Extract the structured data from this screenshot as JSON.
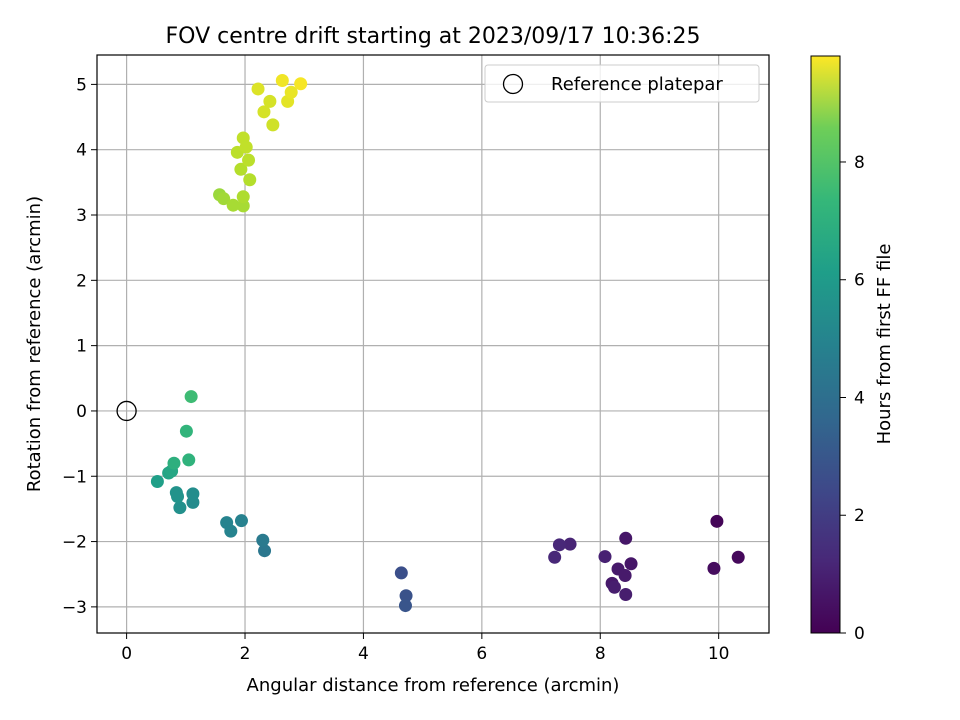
{
  "chart_data": {
    "type": "scatter",
    "title": "FOV centre drift starting at 2023/09/17 10:36:25",
    "xlabel": "Angular distance from reference (arcmin)",
    "ylabel": "Rotation from reference (arcmin)",
    "xlim": [
      -0.5,
      10.85
    ],
    "ylim": [
      -3.4,
      5.45
    ],
    "xticks": [
      0,
      2,
      4,
      6,
      8,
      10
    ],
    "yticks": [
      -3,
      -2,
      -1,
      0,
      1,
      2,
      3,
      4,
      5
    ],
    "grid": true,
    "legend": {
      "position": "top-right",
      "entries": [
        "Reference platepar"
      ]
    },
    "reference_point": {
      "x": 0,
      "y": 0
    },
    "colorbar": {
      "label": "Hours from first FF file",
      "range": [
        0,
        9.8
      ],
      "ticks": [
        0,
        2,
        4,
        6,
        8
      ],
      "colormap": "viridis"
    },
    "points": [
      {
        "x": 9.97,
        "y": -1.69,
        "t": 0.1
      },
      {
        "x": 10.33,
        "y": -2.24,
        "t": 0.2
      },
      {
        "x": 9.92,
        "y": -2.41,
        "t": 0.3
      },
      {
        "x": 8.43,
        "y": -1.95,
        "t": 0.6
      },
      {
        "x": 8.52,
        "y": -2.34,
        "t": 0.6
      },
      {
        "x": 8.3,
        "y": -2.42,
        "t": 0.7
      },
      {
        "x": 8.42,
        "y": -2.52,
        "t": 0.7
      },
      {
        "x": 8.2,
        "y": -2.64,
        "t": 0.7
      },
      {
        "x": 8.24,
        "y": -2.7,
        "t": 0.8
      },
      {
        "x": 8.43,
        "y": -2.81,
        "t": 0.8
      },
      {
        "x": 8.08,
        "y": -2.23,
        "t": 0.9
      },
      {
        "x": 7.49,
        "y": -2.04,
        "t": 1.0
      },
      {
        "x": 7.31,
        "y": -2.05,
        "t": 1.1
      },
      {
        "x": 7.23,
        "y": -2.24,
        "t": 1.1
      },
      {
        "x": 4.64,
        "y": -2.48,
        "t": 2.4
      },
      {
        "x": 4.72,
        "y": -2.83,
        "t": 2.5
      },
      {
        "x": 4.71,
        "y": -2.98,
        "t": 2.6
      },
      {
        "x": 2.33,
        "y": -2.14,
        "t": 3.9
      },
      {
        "x": 2.3,
        "y": -1.98,
        "t": 4.0
      },
      {
        "x": 1.94,
        "y": -1.68,
        "t": 4.3
      },
      {
        "x": 1.69,
        "y": -1.71,
        "t": 4.4
      },
      {
        "x": 1.76,
        "y": -1.84,
        "t": 4.4
      },
      {
        "x": 1.12,
        "y": -1.4,
        "t": 4.7
      },
      {
        "x": 1.12,
        "y": -1.27,
        "t": 4.8
      },
      {
        "x": 0.9,
        "y": -1.48,
        "t": 4.9
      },
      {
        "x": 0.84,
        "y": -1.25,
        "t": 5.0
      },
      {
        "x": 0.86,
        "y": -1.31,
        "t": 5.0
      },
      {
        "x": 0.52,
        "y": -1.08,
        "t": 5.5
      },
      {
        "x": 0.71,
        "y": -0.95,
        "t": 5.7
      },
      {
        "x": 0.76,
        "y": -0.92,
        "t": 5.8
      },
      {
        "x": 0.8,
        "y": -0.8,
        "t": 6.2
      },
      {
        "x": 1.05,
        "y": -0.75,
        "t": 6.3
      },
      {
        "x": 1.01,
        "y": -0.31,
        "t": 6.4
      },
      {
        "x": 1.09,
        "y": 0.22,
        "t": 6.7
      },
      {
        "x": 1.57,
        "y": 3.31,
        "t": 8.3
      },
      {
        "x": 1.64,
        "y": 3.25,
        "t": 8.4
      },
      {
        "x": 1.8,
        "y": 3.15,
        "t": 8.5
      },
      {
        "x": 1.97,
        "y": 3.14,
        "t": 8.5
      },
      {
        "x": 1.97,
        "y": 3.28,
        "t": 8.6
      },
      {
        "x": 2.08,
        "y": 3.54,
        "t": 8.7
      },
      {
        "x": 1.93,
        "y": 3.7,
        "t": 8.7
      },
      {
        "x": 2.06,
        "y": 3.84,
        "t": 8.8
      },
      {
        "x": 1.87,
        "y": 3.96,
        "t": 8.8
      },
      {
        "x": 2.02,
        "y": 4.04,
        "t": 8.9
      },
      {
        "x": 1.97,
        "y": 4.18,
        "t": 8.9
      },
      {
        "x": 2.47,
        "y": 4.38,
        "t": 9.1
      },
      {
        "x": 2.32,
        "y": 4.58,
        "t": 9.2
      },
      {
        "x": 2.42,
        "y": 4.74,
        "t": 9.2
      },
      {
        "x": 2.22,
        "y": 4.93,
        "t": 9.3
      },
      {
        "x": 2.72,
        "y": 4.74,
        "t": 9.4
      },
      {
        "x": 2.78,
        "y": 4.88,
        "t": 9.5
      },
      {
        "x": 2.63,
        "y": 5.06,
        "t": 9.6
      },
      {
        "x": 2.94,
        "y": 5.01,
        "t": 9.7
      }
    ]
  }
}
